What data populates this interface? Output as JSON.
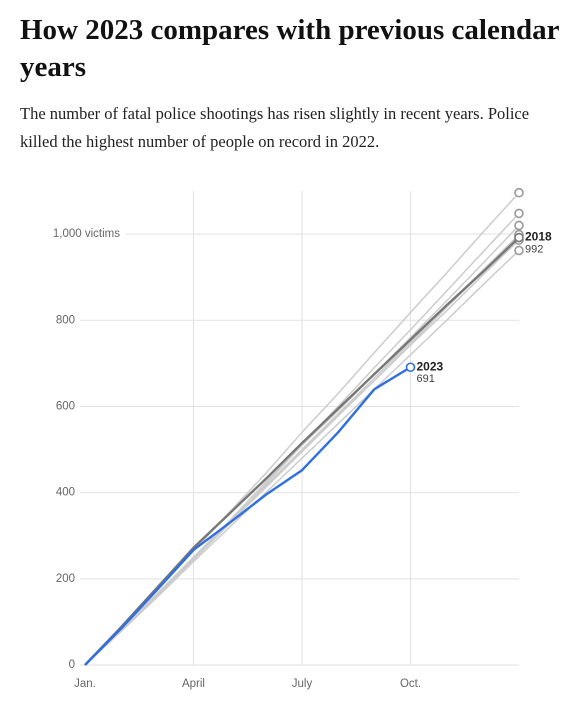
{
  "chart_data": {
    "type": "line",
    "title": "How 2023 compares with previous calendar years",
    "subtitle": "The number of fatal police shootings has risen slightly in recent years. Police killed the highest number of people on record in 2022.",
    "categories": [
      "Jan.",
      null,
      null,
      "April",
      null,
      null,
      "July",
      null,
      null,
      "Oct.",
      null,
      null,
      null
    ],
    "ylim": [
      0,
      1100
    ],
    "yticks": [
      0,
      200,
      400,
      600,
      800,
      {
        "value": 1000,
        "label": "1,000 victims"
      }
    ],
    "grid": true,
    "series": [
      {
        "color": "#cccccc",
        "values": [
          0,
          80,
          162,
          245,
          330,
          415,
          495,
          580,
          660,
          745,
          830,
          912,
          994
        ]
      },
      {
        "color": "#cccccc",
        "values": [
          0,
          78,
          158,
          240,
          320,
          400,
          480,
          560,
          640,
          720,
          800,
          882,
          962
        ]
      },
      {
        "color": "#cccccc",
        "values": [
          0,
          82,
          165,
          248,
          330,
          412,
          495,
          578,
          660,
          742,
          822,
          905,
          986
        ]
      },
      {
        "color": "#cccccc",
        "values": [
          0,
          83,
          166,
          250,
          333,
          416,
          500,
          583,
          666,
          750,
          833,
          916,
          999
        ]
      },
      {
        "color": "#cccccc",
        "values": [
          0,
          80,
          162,
          245,
          328,
          420,
          510,
          590,
          675,
          760,
          845,
          932,
          1020
        ]
      },
      {
        "color": "#cccccc",
        "values": [
          0,
          82,
          165,
          250,
          335,
          425,
          512,
          600,
          690,
          778,
          868,
          958,
          1048
        ]
      },
      {
        "color": "#cccccc",
        "values": [
          0,
          88,
          175,
          265,
          355,
          445,
          540,
          630,
          725,
          818,
          910,
          1004,
          1096
        ]
      },
      {
        "name": "2018",
        "color": "#777777",
        "values": [
          0,
          88,
          180,
          272,
          352,
          432,
          515,
          595,
          675,
          755,
          835,
          912,
          992
        ]
      },
      {
        "name": "2023",
        "color": "#2f6fdf",
        "values": [
          0,
          85,
          175,
          267,
          330,
          395,
          452,
          540,
          640,
          691,
          null,
          null,
          null
        ]
      }
    ]
  }
}
